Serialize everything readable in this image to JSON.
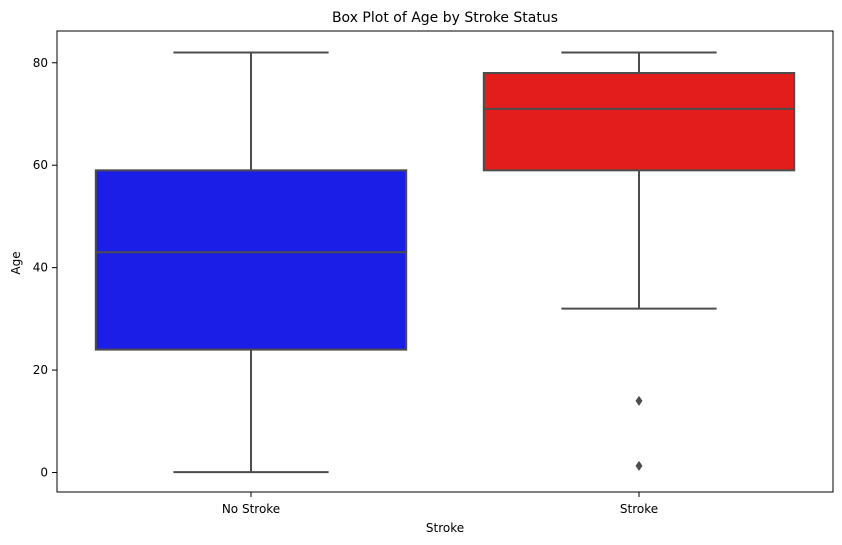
{
  "chart_data": {
    "type": "box",
    "title": "Box Plot of Age by Stroke Status",
    "xlabel": "Stroke",
    "ylabel": "Age",
    "ylim": [
      -3.8,
      86.2
    ],
    "yticks": [
      0,
      20,
      40,
      60,
      80
    ],
    "grid": false,
    "categories": [
      "No Stroke",
      "Stroke"
    ],
    "boxes": [
      {
        "category": "No Stroke",
        "color": "#1b1ee6",
        "whisker_low": 0.08,
        "q1": 24,
        "median": 43,
        "q3": 59,
        "whisker_high": 82,
        "outliers": []
      },
      {
        "category": "Stroke",
        "color": "#e31c1c",
        "whisker_low": 32,
        "q1": 59,
        "median": 71,
        "q3": 78,
        "whisker_high": 82,
        "outliers": [
          14,
          1.3
        ]
      }
    ]
  }
}
